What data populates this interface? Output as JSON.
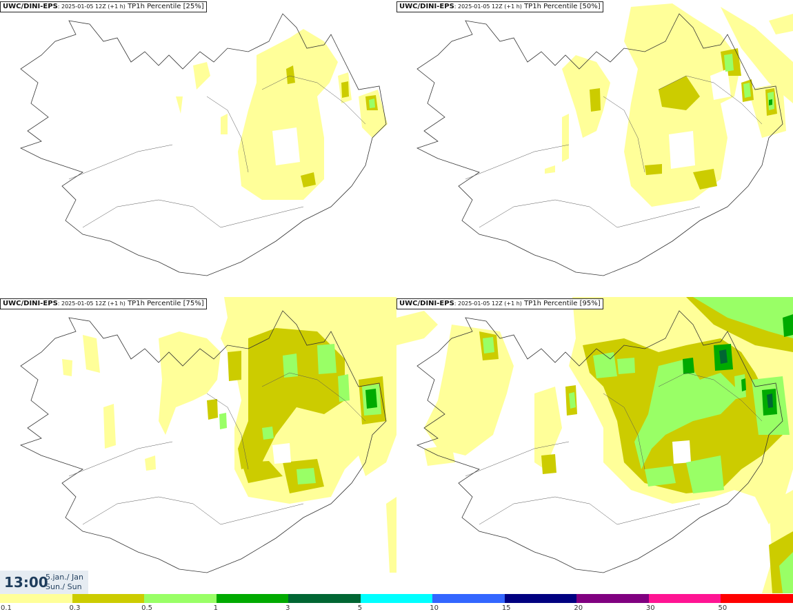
{
  "panels": [
    {
      "model": "UWC/DINI-EPS",
      "run": ": 2025-01-05 12Z (+1 h)",
      "field": " TP1h Percentile [25%]",
      "percentile": 25
    },
    {
      "model": "UWC/DINI-EPS",
      "run": ": 2025-01-05 12Z (+1 h)",
      "field": " TP1h Percentile [50%]",
      "percentile": 50
    },
    {
      "model": "UWC/DINI-EPS",
      "run": ": 2025-01-05 12Z (+1 h)",
      "field": " TP1h Percentile [75%]",
      "percentile": 75
    },
    {
      "model": "UWC/DINI-EPS",
      "run": ": 2025-01-05 12Z (+1 h)",
      "field": " TP1h Percentile [95%]",
      "percentile": 95
    }
  ],
  "valid_time": {
    "time": "13:00",
    "date_line1": "5.jan./ Jan",
    "date_line2": "Sun./ Sun"
  },
  "legend": {
    "thresholds": [
      "0.1",
      "0.3",
      "0.5",
      "1",
      "3",
      "5",
      "10",
      "15",
      "20",
      "30",
      "50"
    ],
    "colors": [
      "#ffff99",
      "#cccc00",
      "#99ff66",
      "#00aa00",
      "#006633",
      "#00ffff",
      "#3366ff",
      "#000080",
      "#800080",
      "#ff1493",
      "#ff0000"
    ]
  }
}
